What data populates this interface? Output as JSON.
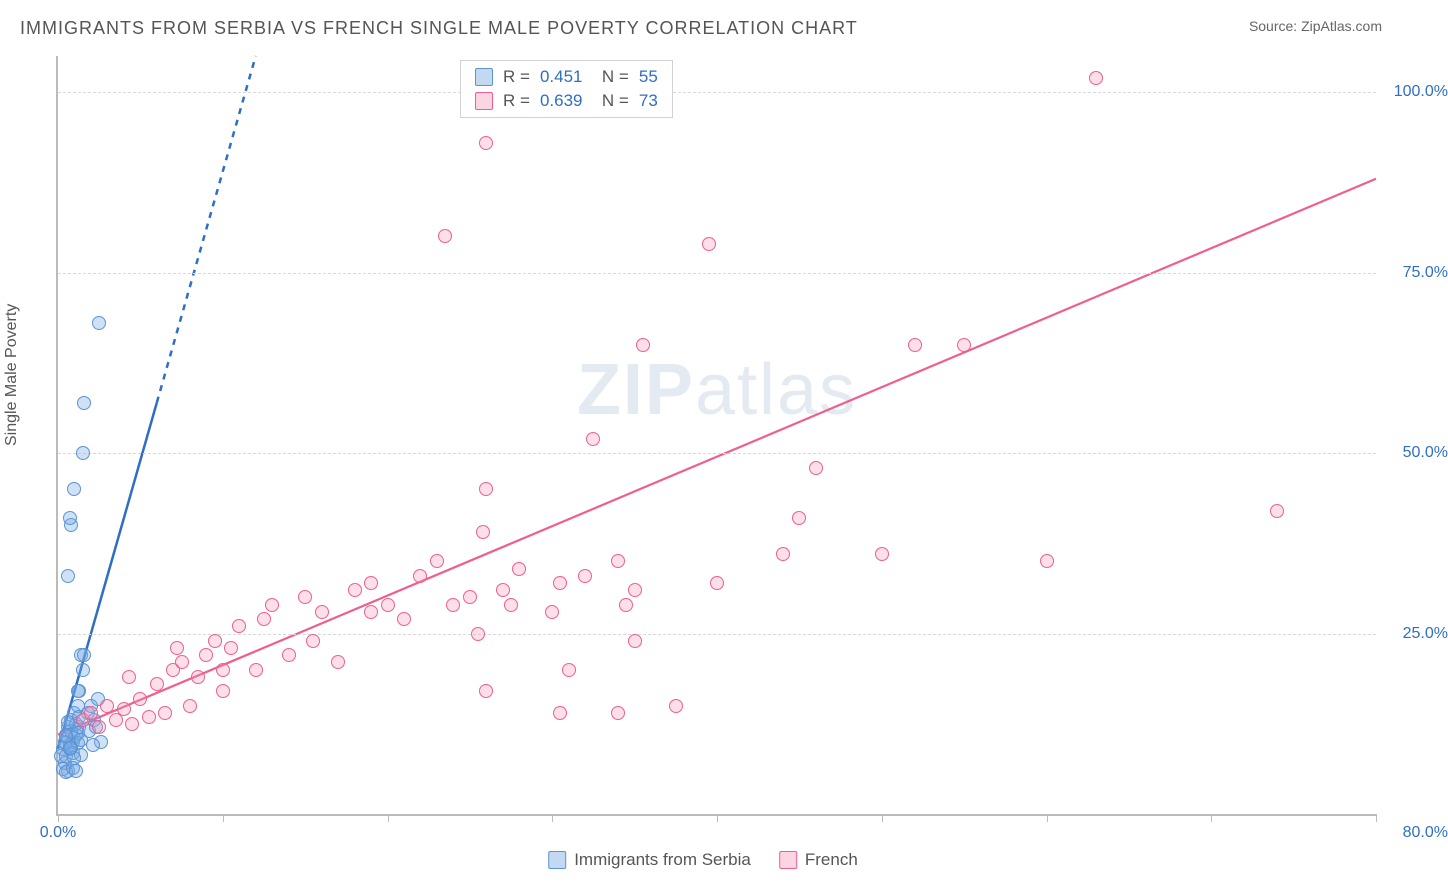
{
  "title": "IMMIGRANTS FROM SERBIA VS FRENCH SINGLE MALE POVERTY CORRELATION CHART",
  "source": "Source: ZipAtlas.com",
  "ylabel": "Single Male Poverty",
  "watermark_a": "ZIP",
  "watermark_b": "atlas",
  "chart": {
    "type": "scatter",
    "xlim": [
      0,
      80
    ],
    "ylim": [
      0,
      105
    ],
    "x_ticks": [
      0,
      10,
      20,
      30,
      40,
      50,
      60,
      70,
      80
    ],
    "x_tick_labels_shown": {
      "first": "0.0%",
      "last": "80.0%"
    },
    "y_ticks": [
      25,
      50,
      75,
      100
    ],
    "y_tick_labels": [
      "25.0%",
      "50.0%",
      "75.0%",
      "100.0%"
    ],
    "background_color": "#ffffff",
    "grid_color": "#e0e0e0",
    "axis_color": "#bbbbbb",
    "tick_label_color": "#2f6fc2",
    "marker_radius": 7,
    "marker_stroke_width": 1.5
  },
  "series": [
    {
      "key": "serbia",
      "label": "Immigrants from Serbia",
      "R": "0.451",
      "N": "55",
      "fill": "rgba(120,170,225,0.35)",
      "stroke": "#5a94d6",
      "trend": {
        "solid": {
          "x1": 0,
          "y1": 9,
          "x2": 6,
          "y2": 57
        },
        "dashed": {
          "x1": 6,
          "y1": 57,
          "x2": 12,
          "y2": 105
        },
        "color": "#2f6fc2",
        "width": 2.5,
        "dash": "6,6"
      },
      "points": [
        [
          0.2,
          8
        ],
        [
          0.3,
          9
        ],
        [
          0.4,
          10
        ],
        [
          0.5,
          11
        ],
        [
          0.6,
          12
        ],
        [
          0.7,
          9
        ],
        [
          0.8,
          13
        ],
        [
          0.9,
          10
        ],
        [
          1.0,
          14
        ],
        [
          1.1,
          11
        ],
        [
          1.2,
          15
        ],
        [
          1.3,
          12
        ],
        [
          0.4,
          7
        ],
        [
          0.5,
          8
        ],
        [
          0.6,
          6
        ],
        [
          0.7,
          9.5
        ],
        [
          0.8,
          11.5
        ],
        [
          0.9,
          8.5
        ],
        [
          1.0,
          10.5
        ],
        [
          1.1,
          12.5
        ],
        [
          1.2,
          9.8
        ],
        [
          1.3,
          13.5
        ],
        [
          1.4,
          8.2
        ],
        [
          0.3,
          6.2
        ],
        [
          0.4,
          9.8
        ],
        [
          0.6,
          12.8
        ],
        [
          0.8,
          9.2
        ],
        [
          1.0,
          7.8
        ],
        [
          1.2,
          11.2
        ],
        [
          1.4,
          10.2
        ],
        [
          0.5,
          5.8
        ],
        [
          0.7,
          9.1
        ],
        [
          0.5,
          10.8
        ],
        [
          1.5,
          20
        ],
        [
          1.4,
          22
        ],
        [
          1.3,
          17
        ],
        [
          1.2,
          17
        ],
        [
          1.6,
          22
        ],
        [
          0.6,
          33
        ],
        [
          0.8,
          40
        ],
        [
          0.7,
          41
        ],
        [
          1.0,
          45
        ],
        [
          1.5,
          50
        ],
        [
          1.6,
          57
        ],
        [
          2.5,
          68
        ],
        [
          1.8,
          14
        ],
        [
          2.0,
          15
        ],
        [
          2.2,
          13
        ],
        [
          2.4,
          16
        ],
        [
          2.6,
          10
        ],
        [
          0.9,
          6.4
        ],
        [
          1.1,
          5.9
        ],
        [
          1.9,
          11.5
        ],
        [
          2.1,
          9.6
        ],
        [
          2.3,
          12.1
        ]
      ]
    },
    {
      "key": "french",
      "label": "French",
      "R": "0.639",
      "N": "73",
      "fill": "rgba(245,150,180,0.30)",
      "stroke": "#ef5e91",
      "trend": {
        "solid": {
          "x1": 0,
          "y1": 11,
          "x2": 80,
          "y2": 88
        },
        "color": "#ef5e91",
        "width": 2.2
      },
      "points": [
        [
          1.5,
          13
        ],
        [
          2.0,
          14
        ],
        [
          2.5,
          12
        ],
        [
          3.0,
          15
        ],
        [
          3.5,
          13
        ],
        [
          4.0,
          14.5
        ],
        [
          4.3,
          19
        ],
        [
          4.5,
          12.5
        ],
        [
          5.0,
          16
        ],
        [
          5.5,
          13.5
        ],
        [
          6.0,
          18
        ],
        [
          6.5,
          14
        ],
        [
          7.0,
          20
        ],
        [
          7.2,
          23
        ],
        [
          7.5,
          21
        ],
        [
          8.0,
          15
        ],
        [
          8.5,
          19
        ],
        [
          9.0,
          22
        ],
        [
          9.5,
          24
        ],
        [
          10.0,
          17
        ],
        [
          10.0,
          20
        ],
        [
          10.5,
          23
        ],
        [
          11.0,
          26
        ],
        [
          12.0,
          20
        ],
        [
          12.5,
          27
        ],
        [
          13.0,
          29
        ],
        [
          14.0,
          22
        ],
        [
          15.0,
          30
        ],
        [
          15.5,
          24
        ],
        [
          16.0,
          28
        ],
        [
          17.0,
          21
        ],
        [
          18.0,
          31
        ],
        [
          19.0,
          32
        ],
        [
          19.0,
          28
        ],
        [
          20.0,
          29
        ],
        [
          21.0,
          27
        ],
        [
          22.0,
          33
        ],
        [
          23.0,
          35
        ],
        [
          24.0,
          29
        ],
        [
          25.0,
          30
        ],
        [
          25.8,
          39
        ],
        [
          25.5,
          25
        ],
        [
          26.0,
          45
        ],
        [
          26.0,
          17
        ],
        [
          27.0,
          31
        ],
        [
          27.5,
          29
        ],
        [
          28.0,
          34
        ],
        [
          30.0,
          28
        ],
        [
          30.5,
          32
        ],
        [
          30.5,
          14
        ],
        [
          31.0,
          20
        ],
        [
          32.0,
          33
        ],
        [
          32.5,
          52
        ],
        [
          34.0,
          35
        ],
        [
          34.5,
          29
        ],
        [
          34.0,
          14
        ],
        [
          35.0,
          31
        ],
        [
          35.0,
          24
        ],
        [
          35.5,
          65
        ],
        [
          26.0,
          93
        ],
        [
          23.5,
          80
        ],
        [
          52.0,
          65
        ],
        [
          39.5,
          79
        ],
        [
          37.5,
          15
        ],
        [
          40.0,
          32
        ],
        [
          45.0,
          41
        ],
        [
          44.0,
          36
        ],
        [
          46.0,
          48
        ],
        [
          50.0,
          36
        ],
        [
          55.0,
          65
        ],
        [
          63.0,
          102
        ],
        [
          74.0,
          42
        ],
        [
          60.0,
          35
        ]
      ]
    }
  ],
  "legend_bottom": [
    {
      "swatch": "sw-blue",
      "label": "Immigrants from Serbia"
    },
    {
      "swatch": "sw-pink",
      "label": "French"
    }
  ]
}
